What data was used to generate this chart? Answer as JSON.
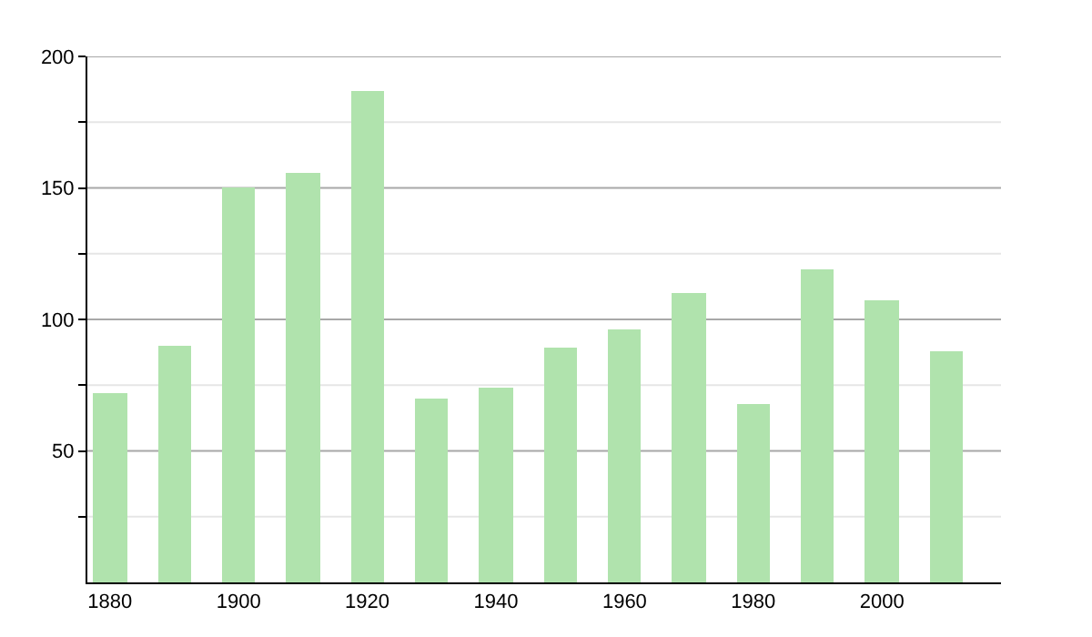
{
  "chart_data": {
    "type": "bar",
    "x": [
      1880,
      1890,
      1900,
      1910,
      1920,
      1930,
      1940,
      1950,
      1960,
      1970,
      1980,
      1990,
      2000,
      2010
    ],
    "values": [
      72,
      90,
      150,
      156,
      187,
      70,
      74,
      89,
      96,
      110,
      68,
      119,
      107,
      88
    ],
    "color": "#b0e3ad",
    "xlim": [
      1876.5,
      2018.5
    ],
    "xticks": [
      1880,
      1900,
      1920,
      1940,
      1960,
      1980,
      2000
    ],
    "ylim": [
      0,
      200
    ],
    "yticks": [
      {
        "value": 25,
        "label": null
      },
      50,
      {
        "value": 75,
        "label": null
      },
      100,
      {
        "value": 125,
        "label": null
      },
      150,
      {
        "value": 175,
        "label": null
      },
      200
    ],
    "grid": "y"
  }
}
